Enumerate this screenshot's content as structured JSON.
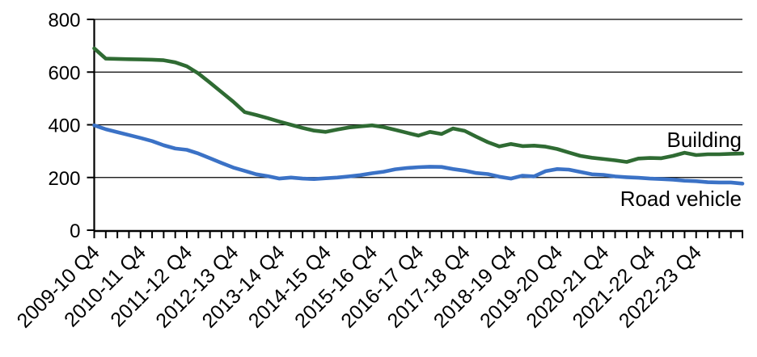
{
  "chart_data": {
    "type": "line",
    "title": "",
    "grid": "horizontal",
    "background_color": "#ffffff",
    "axis_color": "#000000",
    "gridline_color": "#000000",
    "x_axis": {
      "points_per_series": 57,
      "label_every_n_points": 4,
      "tick_labels": [
        "2009-10 Q4",
        "2010-11 Q4",
        "2011-12 Q4",
        "2012-13 Q4",
        "2013-14 Q4",
        "2014-15 Q4",
        "2015-16 Q4",
        "2016-17 Q4",
        "2017-18 Q4",
        "2018-19 Q4",
        "2019-20 Q4",
        "2020-21 Q4",
        "2021-22 Q4",
        "2022-23 Q4"
      ]
    },
    "y_axis": {
      "range": [
        0,
        800
      ],
      "ticks": [
        0,
        200,
        400,
        600,
        800
      ]
    },
    "series_label_placement": "inline-right",
    "series": [
      {
        "name": "Building",
        "color": "#2F6B33",
        "values": [
          690,
          651,
          650,
          649,
          648,
          647,
          645,
          637,
          622,
          595,
          560,
          524,
          488,
          448,
          437,
          425,
          412,
          400,
          388,
          378,
          373,
          382,
          390,
          394,
          398,
          391,
          381,
          370,
          359,
          373,
          365,
          386,
          377,
          355,
          334,
          318,
          327,
          319,
          321,
          317,
          308,
          295,
          282,
          275,
          270,
          265,
          259,
          272,
          274,
          273,
          282,
          294,
          285,
          288,
          288,
          290,
          291
        ]
      },
      {
        "name": "Road vehicle",
        "color": "#3B72C6",
        "values": [
          398,
          383,
          372,
          361,
          350,
          338,
          322,
          310,
          305,
          291,
          273,
          255,
          238,
          225,
          212,
          205,
          196,
          200,
          196,
          194,
          197,
          200,
          204,
          209,
          216,
          222,
          231,
          236,
          239,
          241,
          240,
          232,
          226,
          217,
          213,
          203,
          196,
          207,
          204,
          224,
          232,
          230,
          221,
          212,
          210,
          204,
          201,
          199,
          196,
          194,
          192,
          188,
          186,
          182,
          181,
          181,
          177
        ]
      }
    ]
  }
}
